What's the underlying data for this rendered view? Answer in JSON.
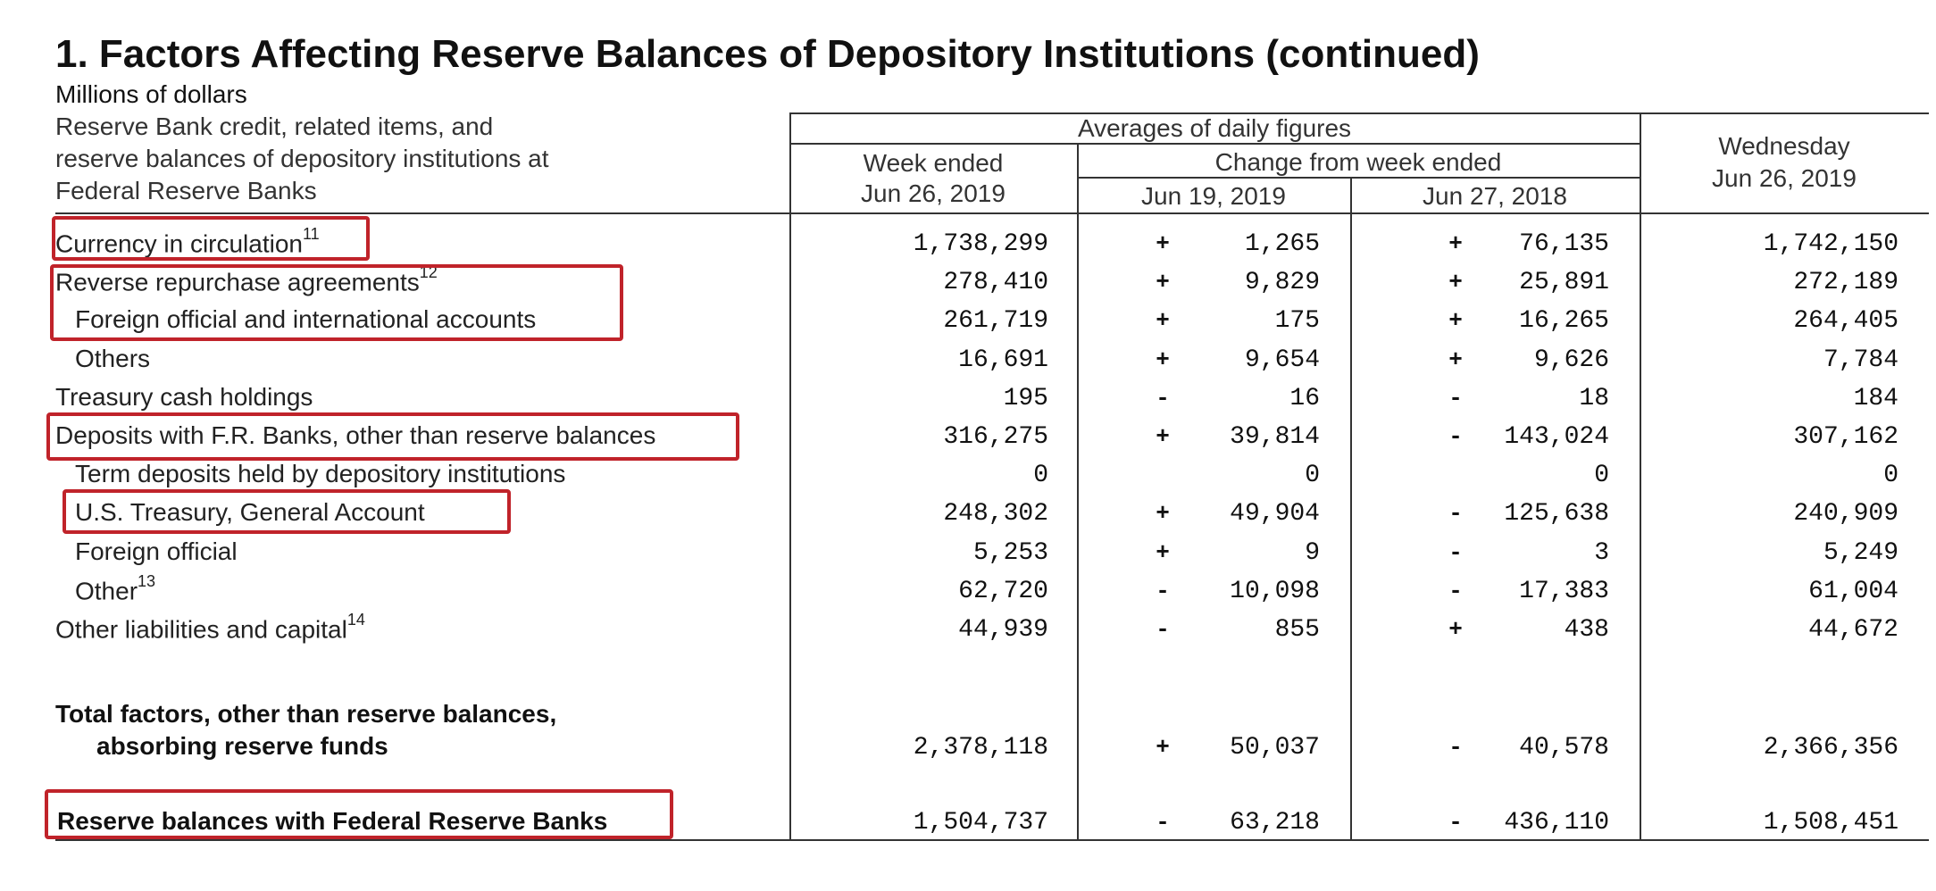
{
  "title": "1. Factors Affecting Reserve Balances of Depository Institutions (continued)",
  "units": "Millions of dollars",
  "header": {
    "stub_lines": [
      "Reserve Bank credit, related items, and",
      "reserve balances of depository institutions at",
      "Federal Reserve Banks"
    ],
    "averages": "Averages of daily figures",
    "week_ended": [
      "Week ended",
      "Jun 26, 2019"
    ],
    "change_from": "Change from week ended",
    "change_col1": "Jun 19, 2019",
    "change_col2": "Jun 27, 2018",
    "wednesday": [
      "Wednesday",
      "Jun 26, 2019"
    ]
  },
  "rows": [
    {
      "label": "Currency in circulation",
      "note": "11",
      "week": "1,738,299",
      "s1": "+",
      "c1": "1,265",
      "s2": "+",
      "c2": "76,135",
      "wed": "1,742,150"
    },
    {
      "label": "Reverse repurchase agreements",
      "note": "12",
      "week": "278,410",
      "s1": "+",
      "c1": "9,829",
      "s2": "+",
      "c2": "25,891",
      "wed": "272,189"
    },
    {
      "label": "Foreign official and international accounts",
      "note": "",
      "week": "261,719",
      "s1": "+",
      "c1": "175",
      "s2": "+",
      "c2": "16,265",
      "wed": "264,405"
    },
    {
      "label": "Others",
      "note": "",
      "week": "16,691",
      "s1": "+",
      "c1": "9,654",
      "s2": "+",
      "c2": "9,626",
      "wed": "7,784"
    },
    {
      "label": "Treasury cash holdings",
      "note": "",
      "week": "195",
      "s1": "-",
      "c1": "16",
      "s2": "-",
      "c2": "18",
      "wed": "184"
    },
    {
      "label": "Deposits with F.R. Banks, other than reserve balances",
      "note": "",
      "week": "316,275",
      "s1": "+",
      "c1": "39,814",
      "s2": "-",
      "c2": "143,024",
      "wed": "307,162"
    },
    {
      "label": "Term deposits held by depository institutions",
      "note": "",
      "week": "0",
      "s1": "",
      "c1": "0",
      "s2": "",
      "c2": "0",
      "wed": "0"
    },
    {
      "label": "U.S. Treasury, General Account",
      "note": "",
      "week": "248,302",
      "s1": "+",
      "c1": "49,904",
      "s2": "-",
      "c2": "125,638",
      "wed": "240,909"
    },
    {
      "label": "Foreign official",
      "note": "",
      "week": "5,253",
      "s1": "+",
      "c1": "9",
      "s2": "-",
      "c2": "3",
      "wed": "5,249"
    },
    {
      "label": "Other",
      "note": "13",
      "week": "62,720",
      "s1": "-",
      "c1": "10,098",
      "s2": "-",
      "c2": "17,383",
      "wed": "61,004"
    },
    {
      "label": "Other liabilities and capital",
      "note": "14",
      "week": "44,939",
      "s1": "-",
      "c1": "855",
      "s2": "+",
      "c2": "438",
      "wed": "44,672"
    }
  ],
  "total": {
    "label_line1": "Total factors, other than reserve balances,",
    "label_line2": "absorbing reserve funds",
    "week": "2,378,118",
    "s1": "+",
    "c1": "50,037",
    "s2": "-",
    "c2": "40,578",
    "wed": "2,366,356"
  },
  "reserve": {
    "label": "Reserve balances with Federal Reserve Banks",
    "week": "1,504,737",
    "s1": "-",
    "c1": "63,218",
    "s2": "-",
    "c2": "436,110",
    "wed": "1,508,451"
  },
  "highlight_color": "#c0232a"
}
